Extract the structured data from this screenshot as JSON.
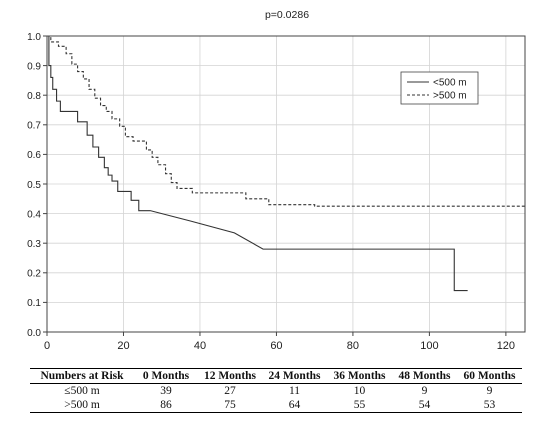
{
  "chart_data": {
    "type": "line",
    "title": "p=0.0286",
    "xlabel": "",
    "ylabel": "",
    "xlim": [
      0,
      125
    ],
    "ylim": [
      0,
      1.0
    ],
    "xticks": [
      "0",
      "20",
      "40",
      "60",
      "80",
      "100",
      "120"
    ],
    "yticks": [
      "0.0",
      "0.1",
      "0.2",
      "0.3",
      "0.4",
      "0.5",
      "0.6",
      "0.7",
      "0.8",
      "0.9",
      "1.0"
    ],
    "grid": true,
    "legend_position": "top-right",
    "series": [
      {
        "name": "<500 m",
        "line_style": "solid",
        "color": "#333333",
        "x": [
          0,
          0.5,
          0.5,
          1,
          1,
          1.5,
          1.5,
          2.5,
          2.5,
          3.5,
          3.5,
          8,
          8,
          10.5,
          10.5,
          12,
          12,
          13.5,
          13.5,
          15,
          15,
          16,
          16,
          17,
          17,
          18.5,
          18.5,
          22,
          22,
          24,
          24,
          27,
          27,
          37.5,
          37.5,
          49,
          49,
          56.5,
          56.5,
          106.5,
          106.5,
          110
        ],
        "y": [
          1.0,
          1.0,
          0.9,
          0.9,
          0.86,
          0.86,
          0.82,
          0.82,
          0.78,
          0.78,
          0.745,
          0.745,
          0.71,
          0.71,
          0.665,
          0.665,
          0.625,
          0.625,
          0.59,
          0.59,
          0.555,
          0.555,
          0.53,
          0.53,
          0.51,
          0.51,
          0.475,
          0.475,
          0.445,
          0.445,
          0.41,
          0.41,
          0.41,
          0.375,
          0.375,
          0.335,
          0.335,
          0.28,
          0.28,
          0.28,
          0.14,
          0.14
        ]
      },
      {
        "name": ">500 m",
        "line_style": "dashed",
        "color": "#333333",
        "x": [
          0,
          1,
          1,
          3,
          3,
          5,
          5,
          6.5,
          6.5,
          8,
          8,
          9.5,
          9.5,
          11,
          11,
          12.5,
          12.5,
          14,
          14,
          15.5,
          15.5,
          17,
          17,
          19,
          19,
          20.5,
          20.5,
          22.5,
          22.5,
          26,
          26,
          27.5,
          27.5,
          29,
          29,
          31,
          31,
          32.5,
          32.5,
          34,
          34,
          38,
          38,
          52,
          52,
          58,
          58,
          70,
          70,
          125
        ],
        "y": [
          1.0,
          1.0,
          0.98,
          0.98,
          0.965,
          0.965,
          0.94,
          0.94,
          0.905,
          0.905,
          0.88,
          0.88,
          0.855,
          0.855,
          0.82,
          0.82,
          0.79,
          0.79,
          0.765,
          0.765,
          0.745,
          0.745,
          0.72,
          0.72,
          0.695,
          0.695,
          0.66,
          0.66,
          0.645,
          0.645,
          0.615,
          0.615,
          0.59,
          0.59,
          0.565,
          0.565,
          0.535,
          0.535,
          0.505,
          0.505,
          0.485,
          0.485,
          0.47,
          0.47,
          0.45,
          0.45,
          0.43,
          0.43,
          0.425,
          0.425
        ]
      }
    ]
  },
  "risk_table": {
    "headers": [
      "Numbers at Risk",
      "0 Months",
      "12 Months",
      "24 Months",
      "36 Months",
      "48 Months",
      "60 Months"
    ],
    "rows": [
      {
        "label": "≤500 m",
        "values": [
          "39",
          "27",
          "11",
          "10",
          "9",
          "9"
        ]
      },
      {
        "label": ">500 m",
        "values": [
          "86",
          "75",
          "64",
          "55",
          "54",
          "53"
        ]
      }
    ]
  }
}
